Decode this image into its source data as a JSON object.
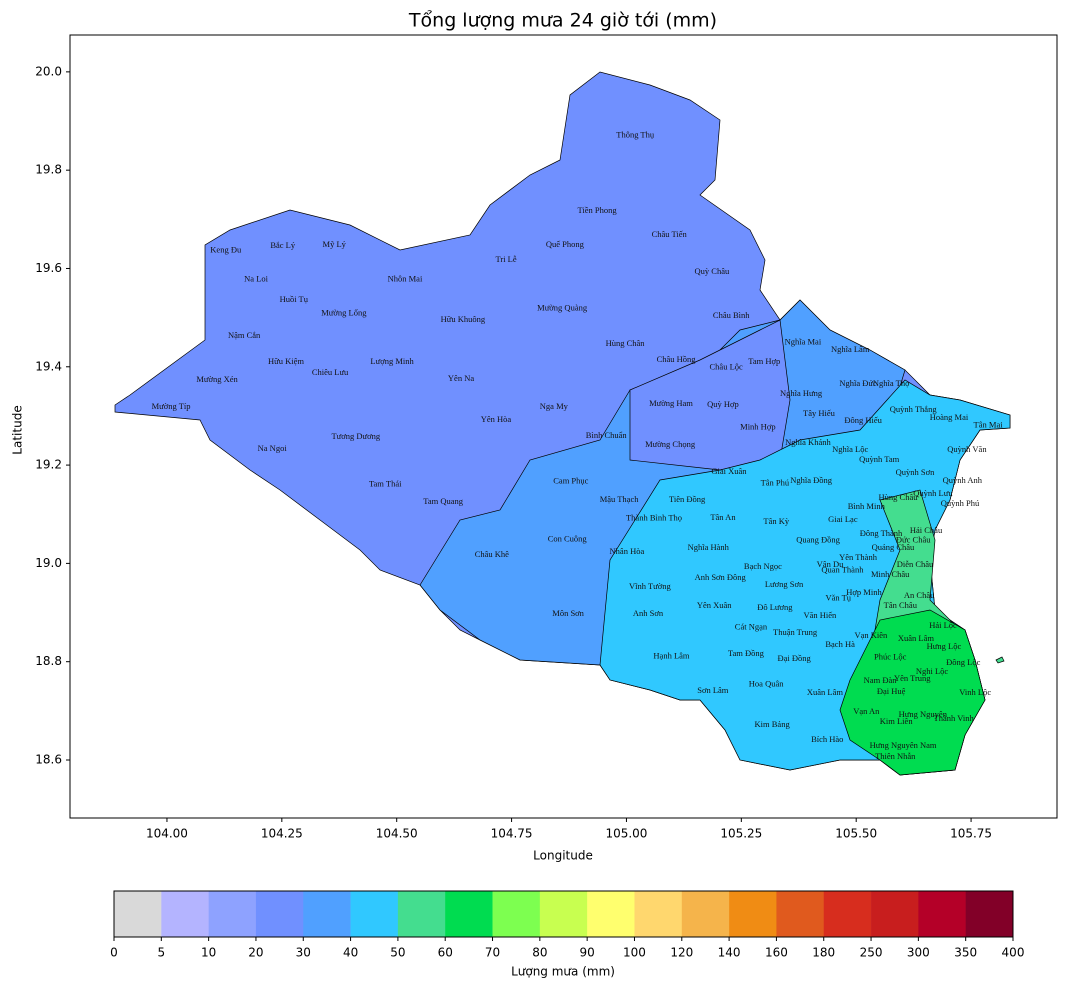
{
  "chart_data": {
    "type": "map",
    "title": "Tổng lượng mưa 24 giờ tới (mm)",
    "x_label": "Longitude",
    "y_label": "Latitude",
    "xlim": [
      103.789,
      105.937
    ],
    "ylim": [
      18.482,
      20.075
    ],
    "xticks": [
      {
        "value": 104,
        "label": "104.00"
      },
      104.25,
      {
        "value": 104.5,
        "label": "104.50"
      },
      104.75,
      {
        "value": 105,
        "label": "105.00"
      },
      105.25,
      {
        "value": 105.5,
        "label": "105.50"
      },
      105.75
    ],
    "yticks": [
      18.6,
      18.8,
      {
        "value": 19,
        "label": "19.0"
      },
      19.2,
      19.4,
      19.6,
      19.8,
      {
        "value": 20,
        "label": "20.0"
      }
    ],
    "labels": [
      {
        "name": "Thông Thụ",
        "lon": 105.019,
        "lat": 19.87
      },
      {
        "name": "Tiền Phong",
        "lon": 104.936,
        "lat": 19.717
      },
      {
        "name": "Châu Tiến",
        "lon": 105.093,
        "lat": 19.668
      },
      {
        "name": "Quế Phong",
        "lon": 104.866,
        "lat": 19.648
      },
      {
        "name": "Tri Lễ",
        "lon": 104.738,
        "lat": 19.617
      },
      {
        "name": "Quỳ Châu",
        "lon": 105.186,
        "lat": 19.593
      },
      {
        "name": "Keng Đu",
        "lon": 104.128,
        "lat": 19.636
      },
      {
        "name": "Bắc Lý",
        "lon": 104.252,
        "lat": 19.646
      },
      {
        "name": "Mỹ Lý",
        "lon": 104.364,
        "lat": 19.648
      },
      {
        "name": "Na Loi",
        "lon": 104.194,
        "lat": 19.577
      },
      {
        "name": "Nhôn Mai",
        "lon": 104.518,
        "lat": 19.577
      },
      {
        "name": "Huồi Tụ",
        "lon": 104.276,
        "lat": 19.536
      },
      {
        "name": "Mường Lống",
        "lon": 104.385,
        "lat": 19.508
      },
      {
        "name": "Hữu Khuông",
        "lon": 104.644,
        "lat": 19.495
      },
      {
        "name": "Mường Quàng",
        "lon": 104.86,
        "lat": 19.518
      },
      {
        "name": "Châu Bình",
        "lon": 105.228,
        "lat": 19.503
      },
      {
        "name": "Nậm Cắn",
        "lon": 104.168,
        "lat": 19.463
      },
      {
        "name": "Hùng Chân",
        "lon": 104.997,
        "lat": 19.446
      },
      {
        "name": "Nghĩa Mai",
        "lon": 105.384,
        "lat": 19.449
      },
      {
        "name": "Nghĩa Lâm",
        "lon": 105.487,
        "lat": 19.434
      },
      {
        "name": "Hữu Kiệm",
        "lon": 104.259,
        "lat": 19.41
      },
      {
        "name": "Lượng Minh",
        "lon": 104.49,
        "lat": 19.41
      },
      {
        "name": "Châu Hồng",
        "lon": 105.108,
        "lat": 19.414
      },
      {
        "name": "Tam Hợp",
        "lon": 105.3,
        "lat": 19.41
      },
      {
        "name": "Châu Lộc",
        "lon": 105.217,
        "lat": 19.398
      },
      {
        "name": "Chiêu Lưu",
        "lon": 104.355,
        "lat": 19.387
      },
      {
        "name": "Mường Xén",
        "lon": 104.109,
        "lat": 19.373
      },
      {
        "name": "Yên Na",
        "lon": 104.64,
        "lat": 19.375
      },
      {
        "name": "Nghĩa Đức",
        "lon": 105.504,
        "lat": 19.365
      },
      {
        "name": "Nghĩa Thọ",
        "lon": 105.576,
        "lat": 19.365
      },
      {
        "name": "Nghĩa Hưng",
        "lon": 105.38,
        "lat": 19.345
      },
      {
        "name": "Mường Típ",
        "lon": 104.009,
        "lat": 19.318
      },
      {
        "name": "Mường Ham",
        "lon": 105.097,
        "lat": 19.324
      },
      {
        "name": "Quỳ Hợp",
        "lon": 105.21,
        "lat": 19.322
      },
      {
        "name": "Nga My",
        "lon": 104.842,
        "lat": 19.318
      },
      {
        "name": "Quỳnh Thắng",
        "lon": 105.624,
        "lat": 19.312
      },
      {
        "name": "Tây Hiếu",
        "lon": 105.419,
        "lat": 19.304
      },
      {
        "name": "Yên Hòa",
        "lon": 104.716,
        "lat": 19.292
      },
      {
        "name": "Hoàng Mai",
        "lon": 105.702,
        "lat": 19.296
      },
      {
        "name": "Tân Mai",
        "lon": 105.787,
        "lat": 19.28
      },
      {
        "name": "Đông Hiếu",
        "lon": 105.515,
        "lat": 19.29
      },
      {
        "name": "Minh Hợp",
        "lon": 105.286,
        "lat": 19.276
      },
      {
        "name": "Tương Dương",
        "lon": 104.411,
        "lat": 19.257
      },
      {
        "name": "Bình Chuẩn",
        "lon": 104.956,
        "lat": 19.259
      },
      {
        "name": "Mường Chọng",
        "lon": 105.095,
        "lat": 19.241
      },
      {
        "name": "Nghĩa Khánh",
        "lon": 105.395,
        "lat": 19.245
      },
      {
        "name": "Na Ngoi",
        "lon": 104.229,
        "lat": 19.233
      },
      {
        "name": "Nghĩa Lộc",
        "lon": 105.487,
        "lat": 19.231
      },
      {
        "name": "Quỳnh Văn",
        "lon": 105.741,
        "lat": 19.231
      },
      {
        "name": "Quỳnh Tam",
        "lon": 105.55,
        "lat": 19.21
      },
      {
        "name": "Giai Xuân",
        "lon": 105.223,
        "lat": 19.186
      },
      {
        "name": "Quỳnh Sơn",
        "lon": 105.628,
        "lat": 19.184
      },
      {
        "name": "Cam Phục",
        "lon": 104.879,
        "lat": 19.166
      },
      {
        "name": "Nghĩa Đồng",
        "lon": 105.402,
        "lat": 19.168
      },
      {
        "name": "Tân Phú",
        "lon": 105.323,
        "lat": 19.162
      },
      {
        "name": "Quỳnh Anh",
        "lon": 105.731,
        "lat": 19.168
      },
      {
        "name": "Tam Thái",
        "lon": 104.475,
        "lat": 19.16
      },
      {
        "name": "Quỳnh Lưu",
        "lon": 105.667,
        "lat": 19.141
      },
      {
        "name": "Hùng Châu",
        "lon": 105.591,
        "lat": 19.133
      },
      {
        "name": "Mậu Thạch",
        "lon": 104.984,
        "lat": 19.129
      },
      {
        "name": "Tiên Đồng",
        "lon": 105.132,
        "lat": 19.129
      },
      {
        "name": "Tam Quang",
        "lon": 104.601,
        "lat": 19.125
      },
      {
        "name": "Bình Minh",
        "lon": 105.522,
        "lat": 19.115
      },
      {
        "name": "Quỳnh Phú",
        "lon": 105.726,
        "lat": 19.121
      },
      {
        "name": "Thành Bình Thọ",
        "lon": 105.06,
        "lat": 19.091
      },
      {
        "name": "Tân An",
        "lon": 105.21,
        "lat": 19.092
      },
      {
        "name": "Tân Kỳ",
        "lon": 105.326,
        "lat": 19.084
      },
      {
        "name": "Giai Lạc",
        "lon": 105.471,
        "lat": 19.088
      },
      {
        "name": "Hải Châu",
        "lon": 105.652,
        "lat": 19.066
      },
      {
        "name": "Đông Thành",
        "lon": 105.554,
        "lat": 19.06
      },
      {
        "name": "Đức Châu",
        "lon": 105.624,
        "lat": 19.046
      },
      {
        "name": "Con Cuông",
        "lon": 104.871,
        "lat": 19.048
      },
      {
        "name": "Quang Đồng",
        "lon": 105.417,
        "lat": 19.046
      },
      {
        "name": "Quảng Châu",
        "lon": 105.58,
        "lat": 19.031
      },
      {
        "name": "Nghĩa Hành",
        "lon": 105.178,
        "lat": 19.031
      },
      {
        "name": "Châu Khê",
        "lon": 104.707,
        "lat": 19.017
      },
      {
        "name": "Nhân Hòa",
        "lon": 105.001,
        "lat": 19.023
      },
      {
        "name": "Yên Thành",
        "lon": 105.504,
        "lat": 19.011
      },
      {
        "name": "Bạch Ngọc",
        "lon": 105.297,
        "lat": 18.993
      },
      {
        "name": "Vân Du",
        "lon": 105.443,
        "lat": 18.997
      },
      {
        "name": "Quan Thành",
        "lon": 105.47,
        "lat": 18.985
      },
      {
        "name": "Diễn Châu",
        "lon": 105.628,
        "lat": 18.997
      },
      {
        "name": "Minh Châu",
        "lon": 105.574,
        "lat": 18.976
      },
      {
        "name": "Anh Sơn Đông",
        "lon": 105.204,
        "lat": 18.97
      },
      {
        "name": "Vĩnh Tường",
        "lon": 105.051,
        "lat": 18.952
      },
      {
        "name": "Lương Sơn",
        "lon": 105.343,
        "lat": 18.956
      },
      {
        "name": "Hợp Minh",
        "lon": 105.517,
        "lat": 18.94
      },
      {
        "name": "Văn Tụ",
        "lon": 105.461,
        "lat": 18.928
      },
      {
        "name": "An Châu",
        "lon": 105.637,
        "lat": 18.934
      },
      {
        "name": "Yên Xuân",
        "lon": 105.191,
        "lat": 18.913
      },
      {
        "name": "Đô Lương",
        "lon": 105.323,
        "lat": 18.909
      },
      {
        "name": "Tân Châu",
        "lon": 105.596,
        "lat": 18.913
      },
      {
        "name": "Môn Sơn",
        "lon": 104.873,
        "lat": 18.897
      },
      {
        "name": "Anh Sơn",
        "lon": 105.047,
        "lat": 18.897
      },
      {
        "name": "Văn Hiến",
        "lon": 105.421,
        "lat": 18.893
      },
      {
        "name": "Hải Lộc",
        "lon": 105.689,
        "lat": 18.873
      },
      {
        "name": "Cát Ngạn",
        "lon": 105.271,
        "lat": 18.869
      },
      {
        "name": "Thuận Trung",
        "lon": 105.367,
        "lat": 18.858
      },
      {
        "name": "Vạn Kiên",
        "lon": 105.532,
        "lat": 18.852
      },
      {
        "name": "Xuân Lâm",
        "lon": 105.63,
        "lat": 18.846
      },
      {
        "name": "Bạch Hà",
        "lon": 105.465,
        "lat": 18.834
      },
      {
        "name": "Hưng Lộc",
        "lon": 105.691,
        "lat": 18.83
      },
      {
        "name": "Hạnh Lâm",
        "lon": 105.098,
        "lat": 18.81
      },
      {
        "name": "Tam Đồng",
        "lon": 105.26,
        "lat": 18.816
      },
      {
        "name": "Đại Đồng",
        "lon": 105.365,
        "lat": 18.805
      },
      {
        "name": "Phúc Lộc",
        "lon": 105.574,
        "lat": 18.808
      },
      {
        "name": "Đông Lộc",
        "lon": 105.733,
        "lat": 18.797
      },
      {
        "name": "Nghi Lộc",
        "lon": 105.665,
        "lat": 18.779
      },
      {
        "name": "Nam Đàn",
        "lon": 105.552,
        "lat": 18.761
      },
      {
        "name": "Yên Trung",
        "lon": 105.622,
        "lat": 18.765
      },
      {
        "name": "Hoa Quân",
        "lon": 105.304,
        "lat": 18.753
      },
      {
        "name": "Sơn Lâm",
        "lon": 105.188,
        "lat": 18.74
      },
      {
        "name": "Xuân Lâm",
        "lon": 105.432,
        "lat": 18.736
      },
      {
        "name": "Đại Huệ",
        "lon": 105.576,
        "lat": 18.738
      },
      {
        "name": "Vinh Lộc",
        "lon": 105.759,
        "lat": 18.736
      },
      {
        "name": "Vạn An",
        "lon": 105.522,
        "lat": 18.698
      },
      {
        "name": "Kim Liên",
        "lon": 105.587,
        "lat": 18.677
      },
      {
        "name": "Hưng Nguyên",
        "lon": 105.645,
        "lat": 18.691
      },
      {
        "name": "Thành Vinh",
        "lon": 105.712,
        "lat": 18.683
      },
      {
        "name": "Kim Bảng",
        "lon": 105.317,
        "lat": 18.671
      },
      {
        "name": "Bích Hào",
        "lon": 105.437,
        "lat": 18.641
      },
      {
        "name": "Hưng Nguyên Nam",
        "lon": 105.602,
        "lat": 18.628
      },
      {
        "name": "Thiên Nhẫn",
        "lon": 105.585,
        "lat": 18.606
      }
    ],
    "colorbar": {
      "label": "Lượng mưa (mm)",
      "bounds": [
        0,
        5,
        10,
        20,
        30,
        40,
        50,
        60,
        70,
        80,
        90,
        100,
        120,
        140,
        160,
        180,
        250,
        300,
        350,
        400
      ],
      "colors": [
        "#d9d9d9",
        "#b4b4ff",
        "#8ea2ff",
        "#7090ff",
        "#50a0ff",
        "#30c8ff",
        "#44dd8f",
        "#00dc50",
        "#7dff50",
        "#c8ff50",
        "#ffff6e",
        "#ffd76e",
        "#f5b44b",
        "#f08c14",
        "#e05a1e",
        "#d72d1e",
        "#c81e1e",
        "#b40028",
        "#820028"
      ]
    }
  }
}
